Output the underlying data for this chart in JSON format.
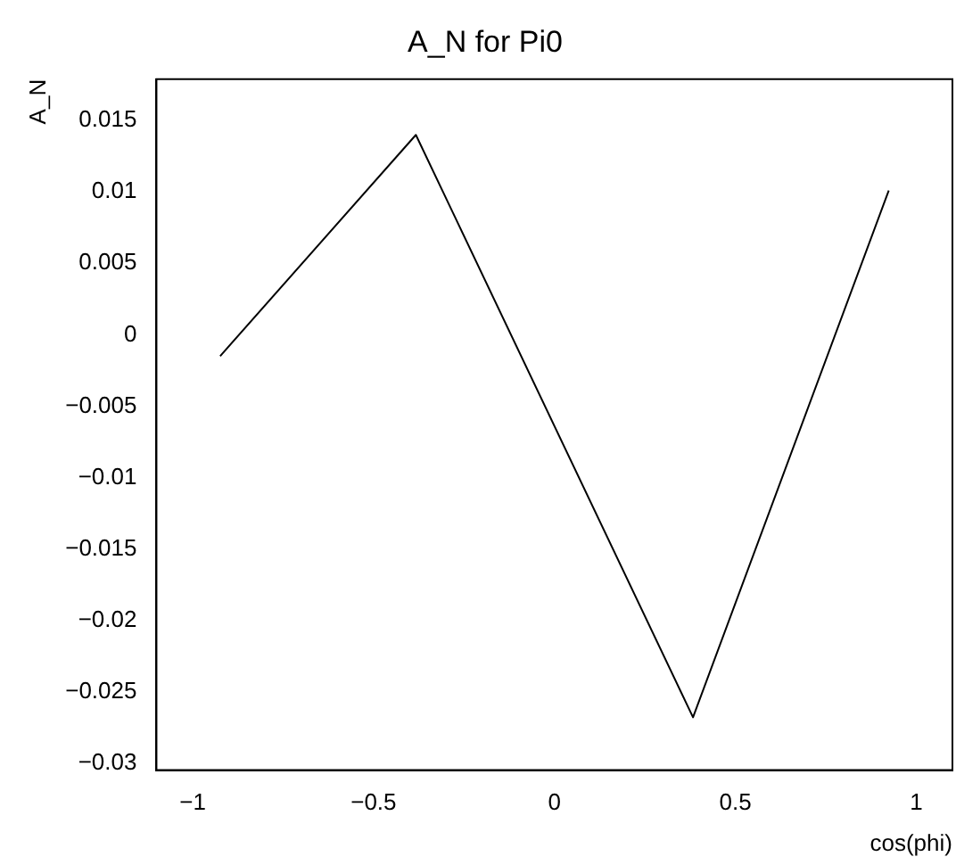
{
  "chart_data": {
    "type": "line",
    "title": "A_N for Pi0",
    "xlabel": "cos(phi)",
    "ylabel": "A_N",
    "x": [
      -0.924,
      -0.383,
      0.383,
      0.924
    ],
    "series": [
      {
        "color": "#000000",
        "values": [
          -0.0015,
          0.014,
          -0.0268,
          0.0101
        ]
      }
    ],
    "xlim": [
      -1.1,
      1.1
    ],
    "xticks": [
      -1,
      -0.5,
      0,
      0.5,
      1
    ],
    "ylim": [
      -0.0305,
      0.0179
    ],
    "yticks": [
      -0.03,
      -0.025,
      -0.02,
      -0.015,
      -0.01,
      -0.005,
      0,
      0.005,
      0.01,
      0.015
    ],
    "grid": false,
    "legend": false,
    "marker": "none",
    "line_style": "solid"
  }
}
